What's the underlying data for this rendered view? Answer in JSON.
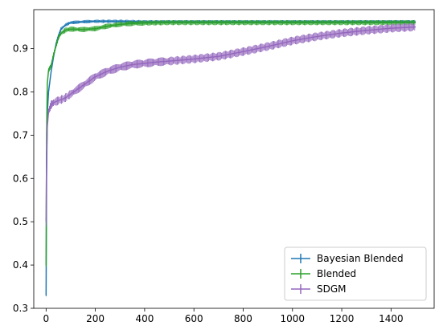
{
  "chart_data": {
    "type": "line",
    "title": "",
    "xlabel": "",
    "ylabel": "",
    "xlim": [
      -50,
      1575
    ],
    "ylim": [
      0.3,
      0.99
    ],
    "xticks": [
      0,
      200,
      400,
      600,
      800,
      1000,
      1200,
      1400
    ],
    "yticks": [
      0.3,
      0.4,
      0.5,
      0.6,
      0.7,
      0.8,
      0.9
    ],
    "xtick_labels": [
      "0",
      "200",
      "400",
      "600",
      "800",
      "1000",
      "1200",
      "1400"
    ],
    "ytick_labels": [
      "0.3",
      "0.4",
      "0.5",
      "0.6",
      "0.7",
      "0.8",
      "0.9"
    ],
    "grid": false,
    "legend_position": "lower-right",
    "series": [
      {
        "name": "Bayesian Blended",
        "color": "#1f77b4",
        "error_band": 0.004,
        "x": [
          0,
          2,
          5,
          10,
          20,
          30,
          40,
          50,
          60,
          80,
          100,
          150,
          200,
          300,
          400,
          500,
          600,
          800,
          1000,
          1200,
          1500
        ],
        "y": [
          0.33,
          0.6,
          0.75,
          0.8,
          0.845,
          0.88,
          0.91,
          0.93,
          0.945,
          0.955,
          0.96,
          0.962,
          0.963,
          0.963,
          0.962,
          0.962,
          0.962,
          0.962,
          0.962,
          0.962,
          0.962
        ]
      },
      {
        "name": "Blended",
        "color": "#2ca02c",
        "error_band": 0.006,
        "x": [
          0,
          2,
          5,
          10,
          20,
          30,
          40,
          50,
          60,
          80,
          100,
          150,
          200,
          250,
          300,
          350,
          400,
          500,
          600,
          800,
          1000,
          1200,
          1500
        ],
        "y": [
          0.4,
          0.7,
          0.82,
          0.85,
          0.86,
          0.885,
          0.905,
          0.925,
          0.935,
          0.943,
          0.945,
          0.944,
          0.946,
          0.952,
          0.956,
          0.958,
          0.959,
          0.96,
          0.96,
          0.96,
          0.96,
          0.96,
          0.96
        ]
      },
      {
        "name": "SDGM",
        "color": "#9467bd",
        "error_band": 0.01,
        "x": [
          0,
          2,
          5,
          10,
          20,
          30,
          50,
          75,
          100,
          150,
          200,
          250,
          300,
          350,
          400,
          450,
          500,
          600,
          700,
          800,
          900,
          1000,
          1100,
          1200,
          1300,
          1400,
          1500
        ],
        "y": [
          0.5,
          0.65,
          0.72,
          0.755,
          0.77,
          0.775,
          0.78,
          0.785,
          0.795,
          0.815,
          0.835,
          0.848,
          0.857,
          0.863,
          0.866,
          0.869,
          0.871,
          0.876,
          0.882,
          0.893,
          0.905,
          0.918,
          0.928,
          0.936,
          0.942,
          0.947,
          0.95
        ]
      }
    ]
  }
}
